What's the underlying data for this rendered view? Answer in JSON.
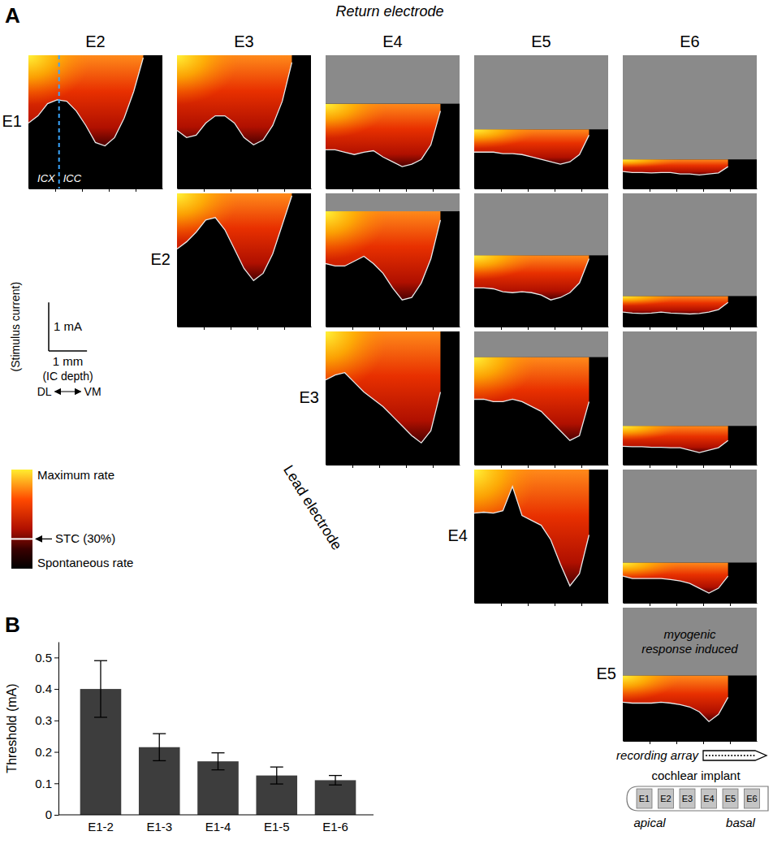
{
  "chart_data": [
    {
      "type": "heatmap",
      "panel_label": "A",
      "title": "Return electrode",
      "y_axis_label": "Lead electrode",
      "return_electrodes": [
        "E2",
        "E3",
        "E4",
        "E5",
        "E6"
      ],
      "lead_electrodes": [
        "E1",
        "E2",
        "E3",
        "E4",
        "E5"
      ],
      "xlim": [
        0,
        3.5
      ],
      "xticks": [
        0.7,
        1.4,
        2.1,
        2.8
      ],
      "ylim": [
        0,
        2.75
      ],
      "tick_labels": false,
      "depth": [
        0,
        0.25,
        0.5,
        0.75,
        1,
        1.25,
        1.5,
        1.75,
        2,
        2.25,
        2.5,
        2.75,
        3,
        3.25
      ],
      "panels": [
        {
          "lead": "E1",
          "return": "E2",
          "stc": [
            1.35,
            1.5,
            1.75,
            1.83,
            1.8,
            1.6,
            1.3,
            0.95,
            0.88,
            1.05,
            1.45,
            2.0,
            2.7,
            null
          ],
          "myogenic_current": null,
          "boundary_depth": 0.8,
          "boundary_labels": [
            "ICX",
            "ICC"
          ]
        },
        {
          "lead": "E1",
          "return": "E3",
          "stc": [
            1.2,
            1.05,
            1.1,
            1.35,
            1.5,
            1.5,
            1.35,
            1.05,
            0.9,
            1.0,
            1.3,
            1.8,
            2.6,
            null
          ],
          "myogenic_current": null
        },
        {
          "lead": "E1",
          "return": "E4",
          "stc": [
            0.8,
            0.8,
            0.75,
            0.7,
            0.75,
            0.78,
            0.65,
            0.55,
            0.45,
            0.5,
            0.6,
            0.9,
            1.6,
            null
          ],
          "myogenic_current": 1.75
        },
        {
          "lead": "E1",
          "return": "E5",
          "stc": [
            0.75,
            0.75,
            0.75,
            0.72,
            0.72,
            0.7,
            0.65,
            0.6,
            0.55,
            0.5,
            0.55,
            0.7,
            1.1,
            null
          ],
          "myogenic_current": 1.22
        },
        {
          "lead": "E1",
          "return": "E6",
          "stc": [
            0.35,
            0.33,
            0.33,
            0.32,
            0.33,
            0.33,
            0.3,
            0.3,
            0.28,
            0.3,
            0.32,
            0.45,
            null,
            null
          ],
          "myogenic_current": 0.6
        },
        {
          "lead": "E2",
          "return": "E3",
          "stc": [
            1.6,
            1.75,
            1.95,
            2.2,
            2.25,
            2.0,
            1.6,
            1.2,
            0.95,
            1.1,
            1.5,
            2.1,
            2.7,
            null
          ],
          "myogenic_current": null
        },
        {
          "lead": "E2",
          "return": "E4",
          "stc": [
            1.3,
            1.25,
            1.25,
            1.35,
            1.45,
            1.3,
            1.1,
            0.8,
            0.55,
            0.6,
            0.9,
            1.4,
            2.2,
            null
          ],
          "myogenic_current": 2.38
        },
        {
          "lead": "E2",
          "return": "E5",
          "stc": [
            0.8,
            0.8,
            0.78,
            0.72,
            0.7,
            0.72,
            0.7,
            0.65,
            0.55,
            0.6,
            0.7,
            0.9,
            1.4,
            null
          ],
          "myogenic_current": 1.47
        },
        {
          "lead": "E2",
          "return": "E6",
          "stc": [
            0.3,
            0.28,
            0.27,
            0.28,
            0.3,
            0.28,
            0.27,
            0.26,
            0.27,
            0.3,
            0.35,
            0.5,
            null,
            null
          ],
          "myogenic_current": 0.63
        },
        {
          "lead": "E3",
          "return": "E4",
          "stc": [
            1.75,
            1.85,
            1.9,
            1.7,
            1.5,
            1.35,
            1.2,
            1.0,
            0.8,
            0.6,
            0.45,
            0.7,
            1.5,
            null
          ],
          "myogenic_current": null
        },
        {
          "lead": "E3",
          "return": "E5",
          "stc": [
            1.35,
            1.35,
            1.3,
            1.3,
            1.35,
            1.3,
            1.2,
            1.1,
            0.9,
            0.7,
            0.5,
            0.6,
            1.3,
            null
          ],
          "myogenic_current": 2.22
        },
        {
          "lead": "E3",
          "return": "E6",
          "stc": [
            0.38,
            0.37,
            0.37,
            0.36,
            0.36,
            0.35,
            0.35,
            0.3,
            0.25,
            0.3,
            0.35,
            0.5,
            null,
            null
          ],
          "myogenic_current": 0.8
        },
        {
          "lead": "E4",
          "return": "E5",
          "stc": [
            1.85,
            1.87,
            1.85,
            1.9,
            2.4,
            1.8,
            1.7,
            1.6,
            1.3,
            0.8,
            0.35,
            0.6,
            1.4,
            null
          ],
          "myogenic_current": null
        },
        {
          "lead": "E4",
          "return": "E6",
          "stc": [
            0.55,
            0.5,
            0.5,
            0.5,
            0.5,
            0.48,
            0.45,
            0.4,
            0.3,
            0.2,
            0.3,
            0.55,
            null,
            null
          ],
          "myogenic_current": 0.83
        },
        {
          "lead": "E5",
          "return": "E6",
          "stc": [
            0.8,
            0.78,
            0.78,
            0.78,
            0.8,
            0.78,
            0.75,
            0.7,
            0.6,
            0.4,
            0.55,
            0.9,
            null,
            null
          ],
          "myogenic_current": 1.35,
          "myogenic_label": "myogenic response induced"
        }
      ],
      "scale_bar": {
        "current": 1,
        "current_label": "1 mA",
        "current_title": "(Stimulus current)",
        "depth": 1,
        "depth_label": "1 mm",
        "depth_title": "(IC depth)",
        "direction_labels": [
          "DL",
          "VM"
        ]
      },
      "colorbar": {
        "range": [
          0,
          100
        ],
        "stc_level": 30,
        "max_label": "Maximum rate",
        "stc_label": "STC (30%)",
        "min_label": "Spontaneous rate"
      },
      "recording_array_label": "recording array",
      "implant": {
        "title": "cochlear implant",
        "electrodes": [
          "E1",
          "E2",
          "E3",
          "E4",
          "E5",
          "E6"
        ],
        "ends": [
          "apical",
          "basal"
        ]
      }
    },
    {
      "type": "bar",
      "panel_label": "B",
      "y_label": "Threshold (mA)",
      "categories": [
        "E1-2",
        "E1-3",
        "E1-4",
        "E1-5",
        "E1-6"
      ],
      "values": [
        0.4,
        0.215,
        0.17,
        0.125,
        0.11
      ],
      "errors": [
        0.09,
        0.043,
        0.027,
        0.027,
        0.015
      ],
      "color": "#3d3d3d",
      "ylim": [
        0,
        0.55
      ],
      "yticks": [
        0,
        0.1,
        0.2,
        0.3,
        0.4,
        0.5
      ]
    }
  ]
}
